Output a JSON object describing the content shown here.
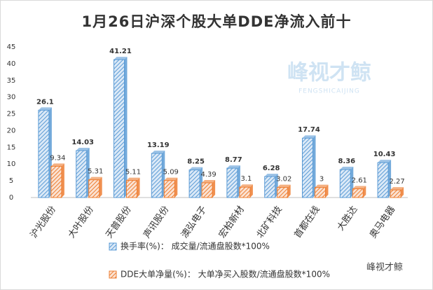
{
  "chart_data": {
    "type": "bar",
    "title": "1月26日沪深个股大单DDE净流入前十",
    "watermark": "峰视才鲸",
    "watermark_sub": "FENGSHICAIJING",
    "footer": "峰视才鲸",
    "categories": [
      "沪光股份",
      "大叶股份",
      "天普股份",
      "声讯股份",
      "澳弘电子",
      "宏柏新材",
      "北矿科技",
      "首都在线",
      "大胜达",
      "奥马电器"
    ],
    "series": [
      {
        "name": "换手率(%)：  成交量/流通盘股数*100%",
        "color": "#5b9bd5",
        "values": [
          26.1,
          14.03,
          41.21,
          13.19,
          8.25,
          8.77,
          6.28,
          17.74,
          8.36,
          10.43
        ]
      },
      {
        "name": "DDE大单净量(%)：  大单净买入股数/流通盘股数*100%",
        "color": "#ed7d31",
        "values": [
          9.34,
          5.31,
          5.11,
          5.09,
          4.39,
          3.1,
          3.02,
          3,
          2.61,
          2.27
        ]
      }
    ],
    "ylim": [
      0,
      45
    ],
    "yticks": [
      0,
      5,
      10,
      15,
      20,
      25,
      30,
      35,
      40,
      45
    ],
    "grid": false,
    "legend": "bottom"
  }
}
